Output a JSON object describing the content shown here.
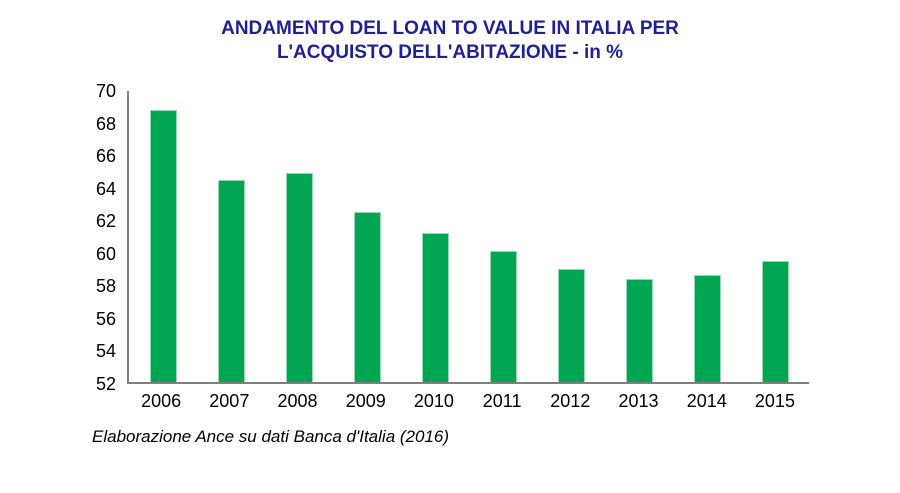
{
  "header": {
    "title_line1": "ANDAMENTO DEL LOAN TO VALUE IN ITALIA PER",
    "title_line2": "L'ACQUISTO DELL'ABITAZIONE - in %",
    "title_color": "#1f1f96"
  },
  "footer": {
    "source_note": "Elaborazione Ance su dati Banca d'Italia (2016)"
  },
  "chart_data": {
    "type": "bar",
    "title": "ANDAMENTO DEL LOAN TO VALUE IN ITALIA PER L'ACQUISTO DELL'ABITAZIONE - in %",
    "categories": [
      "2006",
      "2007",
      "2008",
      "2009",
      "2010",
      "2011",
      "2012",
      "2013",
      "2014",
      "2015"
    ],
    "values": [
      68.8,
      64.5,
      64.9,
      62.5,
      61.2,
      60.1,
      59.0,
      58.4,
      58.6,
      59.5
    ],
    "xlabel": "",
    "ylabel": "",
    "ylim": [
      52,
      70
    ],
    "yticks": [
      52,
      54,
      56,
      58,
      60,
      62,
      64,
      66,
      68,
      70
    ],
    "grid": false,
    "legend_position": "none",
    "bar_color": "#00a651",
    "bar_border_color": "#98dab0",
    "axis_color": "#808080",
    "source_note": "Elaborazione Ance su dati Banca d'Italia (2016)"
  }
}
